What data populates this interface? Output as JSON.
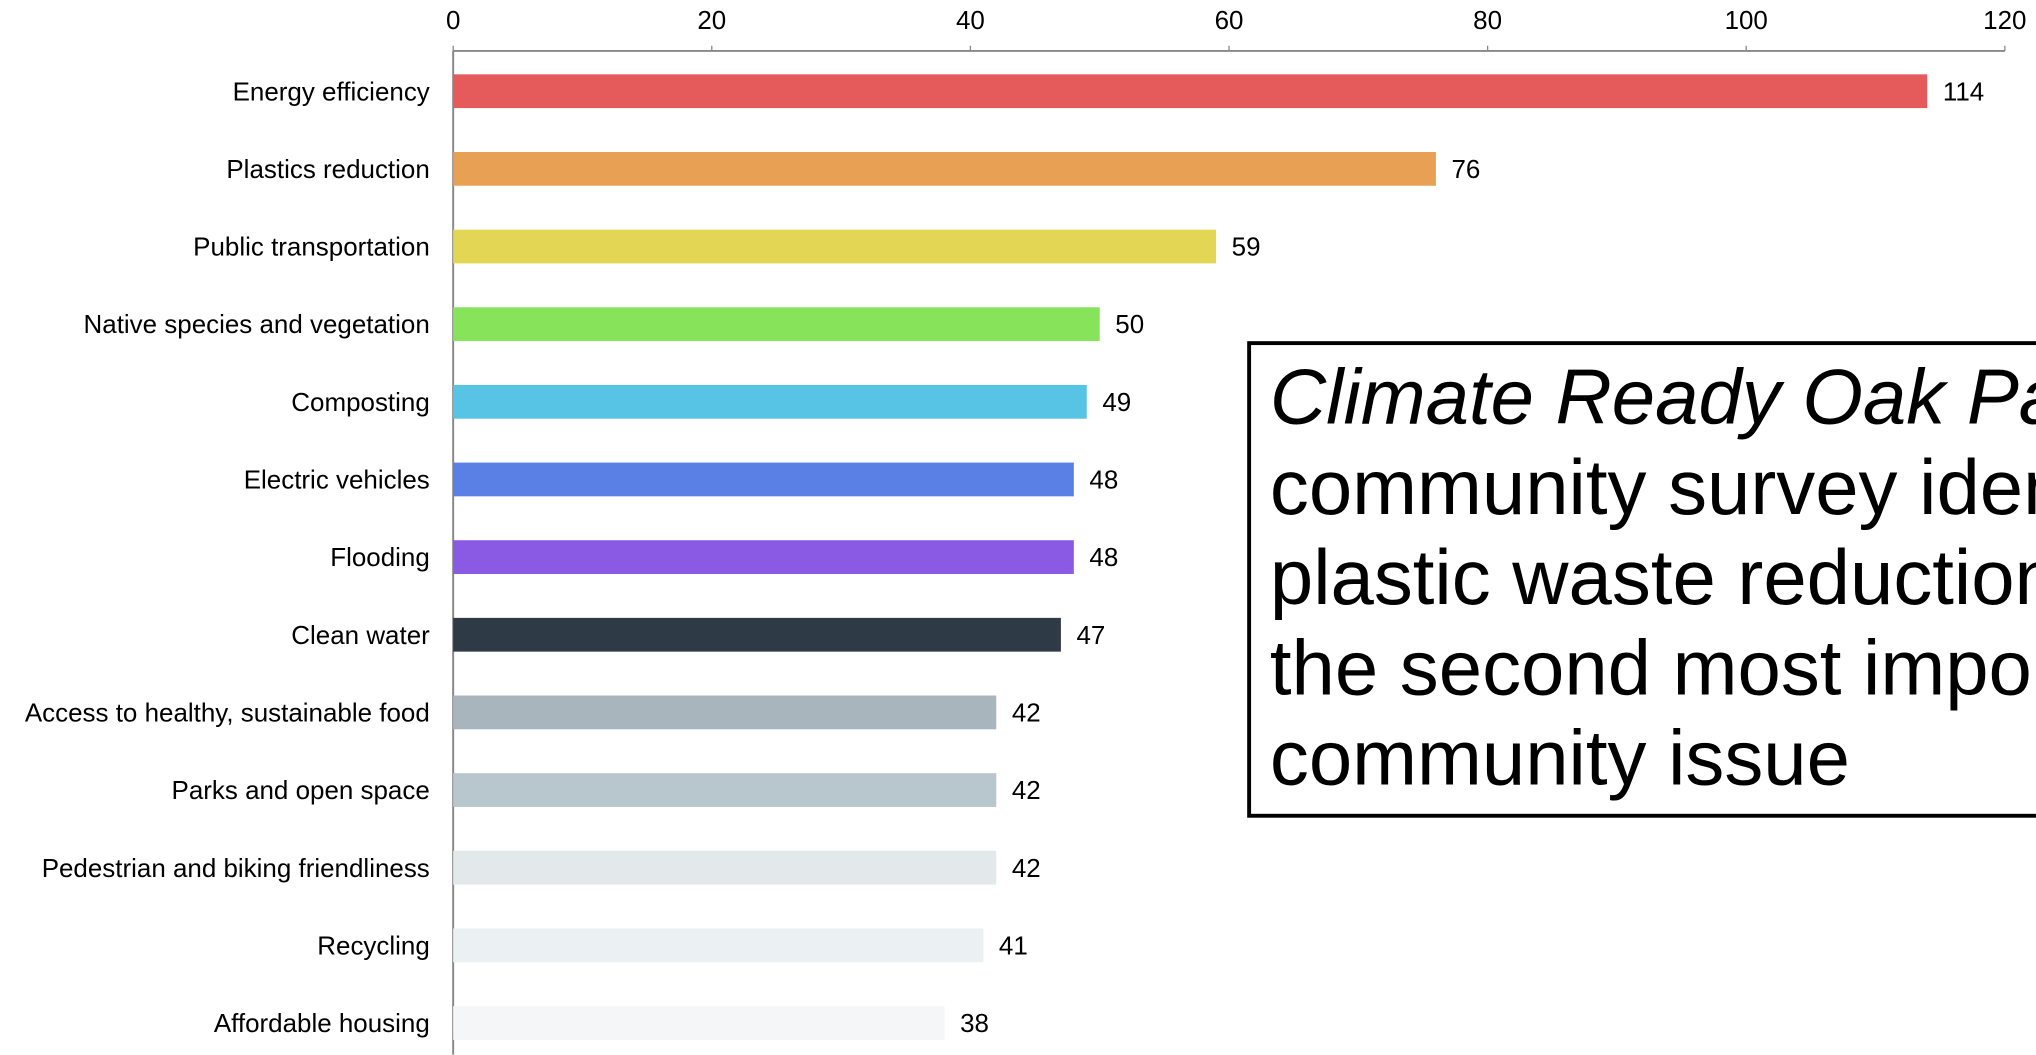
{
  "chart_data": {
    "type": "bar",
    "orientation": "horizontal",
    "categories": [
      "Energy efficiency",
      "Plastics reduction",
      "Public transportation",
      "Native species and vegetation",
      "Composting",
      "Electric vehicles",
      "Flooding",
      "Clean water",
      "Access to healthy, sustainable food",
      "Parks and open space",
      "Pedestrian and biking friendliness",
      "Recycling",
      "Affordable housing"
    ],
    "values": [
      114,
      76,
      59,
      50,
      49,
      48,
      48,
      47,
      42,
      42,
      42,
      41,
      38
    ],
    "colors": [
      "#e55b5b",
      "#e8a055",
      "#e3d654",
      "#86e35a",
      "#58c4e5",
      "#5a7fe5",
      "#8a5ae5",
      "#2e3a45",
      "#a9b5bc",
      "#b8c6ce",
      "#e3e8eb",
      "#ebf0f2",
      "#f4f6f7"
    ],
    "xlim": [
      0,
      120
    ],
    "xticks": [
      0,
      20,
      40,
      60,
      80,
      100,
      120
    ],
    "x_axis_position": "top",
    "annotation": {
      "lines": [
        "Climate Ready Oak Pa",
        "community survey iden",
        "plastic waste reduction",
        "the second most import",
        "community issue"
      ]
    }
  }
}
